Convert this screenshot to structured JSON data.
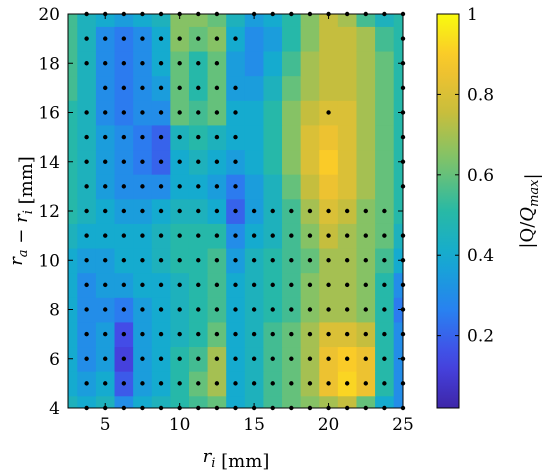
{
  "chart_data": {
    "type": "heatmap",
    "title": "",
    "xlabel": "r_i [mm]",
    "ylabel": "r_a − r_i [mm]",
    "colorbar_label": "|Q/Q_max|",
    "colormap": "parula",
    "xlim": [
      2.5,
      25
    ],
    "ylim": [
      4,
      20
    ],
    "clim": [
      0.02,
      1
    ],
    "x_ticks": [
      "5",
      "10",
      "15",
      "20",
      "25"
    ],
    "y_ticks": [
      "4",
      "6",
      "8",
      "10",
      "12",
      "14",
      "16",
      "18",
      "20"
    ],
    "colorbar_ticks": [
      "0.2",
      "0.4",
      "0.6",
      "0.8",
      "1"
    ],
    "x": [
      2.5,
      3.75,
      5,
      6.25,
      7.5,
      8.75,
      10,
      11.25,
      12.5,
      13.75,
      15,
      16.25,
      17.5,
      18.75,
      20,
      21.25,
      22.5,
      23.75,
      25
    ],
    "y": [
      4,
      5,
      6,
      7,
      8,
      9,
      10,
      11,
      12,
      13,
      14,
      15,
      16,
      17,
      18,
      19,
      20
    ],
    "z": [
      [
        0.45,
        0.4,
        0.45,
        0.3,
        0.4,
        0.45,
        0.5,
        0.55,
        0.6,
        0.4,
        0.45,
        0.55,
        0.6,
        0.65,
        0.7,
        0.75,
        0.6,
        0.4,
        0.3
      ],
      [
        0.4,
        0.35,
        0.4,
        0.18,
        0.35,
        0.4,
        0.5,
        0.6,
        0.7,
        0.4,
        0.45,
        0.55,
        0.6,
        0.7,
        0.85,
        0.92,
        0.85,
        0.5,
        0.3
      ],
      [
        0.4,
        0.3,
        0.35,
        0.12,
        0.35,
        0.4,
        0.5,
        0.55,
        0.7,
        0.4,
        0.45,
        0.55,
        0.6,
        0.7,
        0.85,
        0.9,
        0.85,
        0.5,
        0.3
      ],
      [
        0.4,
        0.3,
        0.35,
        0.15,
        0.35,
        0.4,
        0.45,
        0.5,
        0.6,
        0.4,
        0.45,
        0.55,
        0.6,
        0.7,
        0.8,
        0.8,
        0.75,
        0.5,
        0.3
      ],
      [
        0.4,
        0.3,
        0.3,
        0.25,
        0.35,
        0.4,
        0.45,
        0.5,
        0.55,
        0.4,
        0.45,
        0.5,
        0.55,
        0.65,
        0.7,
        0.7,
        0.65,
        0.5,
        0.25
      ],
      [
        0.4,
        0.3,
        0.35,
        0.35,
        0.4,
        0.4,
        0.45,
        0.5,
        0.55,
        0.4,
        0.45,
        0.5,
        0.55,
        0.65,
        0.7,
        0.7,
        0.65,
        0.5,
        0.3
      ],
      [
        0.4,
        0.35,
        0.35,
        0.4,
        0.4,
        0.45,
        0.5,
        0.5,
        0.55,
        0.35,
        0.45,
        0.5,
        0.55,
        0.6,
        0.7,
        0.7,
        0.65,
        0.55,
        0.4
      ],
      [
        0.45,
        0.4,
        0.4,
        0.4,
        0.4,
        0.45,
        0.5,
        0.5,
        0.5,
        0.3,
        0.4,
        0.45,
        0.55,
        0.65,
        0.75,
        0.7,
        0.65,
        0.6,
        0.45
      ],
      [
        0.5,
        0.45,
        0.4,
        0.35,
        0.35,
        0.4,
        0.45,
        0.45,
        0.4,
        0.2,
        0.35,
        0.45,
        0.55,
        0.7,
        0.8,
        0.75,
        0.65,
        0.6,
        0.5
      ],
      [
        0.5,
        0.45,
        0.35,
        0.3,
        0.3,
        0.3,
        0.4,
        0.4,
        0.35,
        0.25,
        0.35,
        0.45,
        0.6,
        0.75,
        0.85,
        0.8,
        0.7,
        0.6,
        0.5
      ],
      [
        0.5,
        0.45,
        0.35,
        0.3,
        0.25,
        0.2,
        0.4,
        0.45,
        0.4,
        0.35,
        0.4,
        0.5,
        0.65,
        0.8,
        0.9,
        0.8,
        0.7,
        0.6,
        0.5
      ],
      [
        0.5,
        0.45,
        0.35,
        0.3,
        0.25,
        0.2,
        0.45,
        0.5,
        0.45,
        0.4,
        0.4,
        0.5,
        0.65,
        0.8,
        0.85,
        0.8,
        0.7,
        0.6,
        0.5
      ],
      [
        0.5,
        0.45,
        0.3,
        0.25,
        0.3,
        0.3,
        0.6,
        0.55,
        0.6,
        0.4,
        0.4,
        0.5,
        0.65,
        0.75,
        0.8,
        0.8,
        0.7,
        0.6,
        0.5
      ],
      [
        0.55,
        0.45,
        0.3,
        0.25,
        0.3,
        0.35,
        0.6,
        0.5,
        0.6,
        0.35,
        0.35,
        0.45,
        0.6,
        0.7,
        0.75,
        0.75,
        0.7,
        0.6,
        0.5
      ],
      [
        0.55,
        0.45,
        0.3,
        0.25,
        0.3,
        0.4,
        0.6,
        0.5,
        0.6,
        0.35,
        0.3,
        0.4,
        0.55,
        0.7,
        0.75,
        0.75,
        0.7,
        0.6,
        0.5
      ],
      [
        0.55,
        0.45,
        0.3,
        0.25,
        0.3,
        0.4,
        0.65,
        0.6,
        0.65,
        0.4,
        0.3,
        0.35,
        0.5,
        0.65,
        0.75,
        0.75,
        0.7,
        0.55,
        0.5
      ],
      [
        0.55,
        0.45,
        0.4,
        0.35,
        0.4,
        0.45,
        0.65,
        0.65,
        0.6,
        0.45,
        0.35,
        0.4,
        0.5,
        0.65,
        0.75,
        0.7,
        0.55,
        0.45,
        0.5
      ]
    ],
    "sample_points": [
      [
        4,
        [
          3.75,
          5,
          6.25,
          7.5,
          8.75,
          10,
          11.25,
          12.5,
          13.75,
          15,
          16.25,
          17.5,
          18.75,
          20,
          21.25,
          22.5,
          23.75,
          25
        ]
      ],
      [
        5,
        [
          3.75,
          5,
          6.25,
          7.5,
          8.75,
          10,
          11.25,
          12.5,
          13.75,
          15,
          16.25,
          17.5,
          18.75,
          20,
          21.25,
          22.5,
          23.75,
          25
        ]
      ],
      [
        6,
        [
          3.75,
          5,
          6.25,
          7.5,
          8.75,
          10,
          11.25,
          12.5,
          13.75,
          15,
          16.25,
          17.5,
          18.75,
          20,
          21.25,
          22.5,
          23.75,
          25
        ]
      ],
      [
        7,
        [
          3.75,
          5,
          6.25,
          7.5,
          8.75,
          10,
          11.25,
          12.5,
          13.75,
          15,
          16.25,
          17.5,
          18.75,
          20,
          21.25,
          22.5,
          23.75,
          25
        ]
      ],
      [
        8,
        [
          3.75,
          5,
          6.25,
          7.5,
          8.75,
          10,
          11.25,
          12.5,
          13.75,
          15,
          16.25,
          17.5,
          18.75,
          20,
          21.25,
          22.5,
          23.75,
          25
        ]
      ],
      [
        9,
        [
          3.75,
          5,
          6.25,
          7.5,
          8.75,
          10,
          11.25,
          12.5,
          13.75,
          15,
          16.25,
          17.5,
          18.75,
          20,
          21.25,
          22.5,
          23.75,
          25
        ]
      ],
      [
        10,
        [
          3.75,
          5,
          6.25,
          7.5,
          8.75,
          10,
          11.25,
          12.5,
          13.75,
          15,
          16.25,
          17.5,
          18.75,
          20,
          21.25,
          22.5,
          23.75,
          25
        ]
      ],
      [
        11,
        [
          3.75,
          5,
          6.25,
          7.5,
          8.75,
          10,
          11.25,
          12.5,
          13.75,
          15,
          16.25,
          17.5,
          18.75,
          20,
          21.25,
          22.5,
          23.75,
          25
        ]
      ],
      [
        12,
        [
          3.75,
          5,
          6.25,
          7.5,
          8.75,
          10,
          11.25,
          12.5,
          13.75,
          15,
          16.25,
          17.5,
          18.75,
          20,
          21.25,
          22.5,
          23.75
        ]
      ],
      [
        13,
        [
          3.75,
          5,
          6.25,
          7.5,
          8.75,
          10,
          11.25,
          12.5,
          13.75,
          25
        ]
      ],
      [
        14,
        [
          3.75,
          5,
          6.25,
          7.5,
          8.75,
          10,
          11.25,
          12.5,
          13.75,
          25
        ]
      ],
      [
        15,
        [
          3.75,
          5,
          6.25,
          7.5,
          8.75,
          10,
          11.25,
          12.5,
          13.75,
          25
        ]
      ],
      [
        16,
        [
          3.75,
          5,
          6.25,
          7.5,
          8.75,
          10,
          11.25,
          12.5,
          13.75,
          20,
          25
        ]
      ],
      [
        17,
        [
          5,
          6.25,
          7.5,
          8.75,
          10,
          11.25,
          12.5,
          13.75,
          25
        ]
      ],
      [
        18,
        [
          3.75,
          5,
          6.25,
          7.5,
          8.75,
          10,
          11.25,
          12.5,
          25
        ]
      ],
      [
        19,
        [
          3.75,
          5,
          6.25,
          7.5,
          8.75,
          10,
          11.25,
          12.5,
          13.75,
          25
        ]
      ],
      [
        20,
        [
          3.75,
          5,
          6.25,
          7.5,
          8.75,
          10,
          11.25,
          12.5,
          15,
          16.25,
          17.5,
          18.75,
          20,
          21.25,
          22.5,
          23.75,
          25
        ]
      ]
    ]
  }
}
